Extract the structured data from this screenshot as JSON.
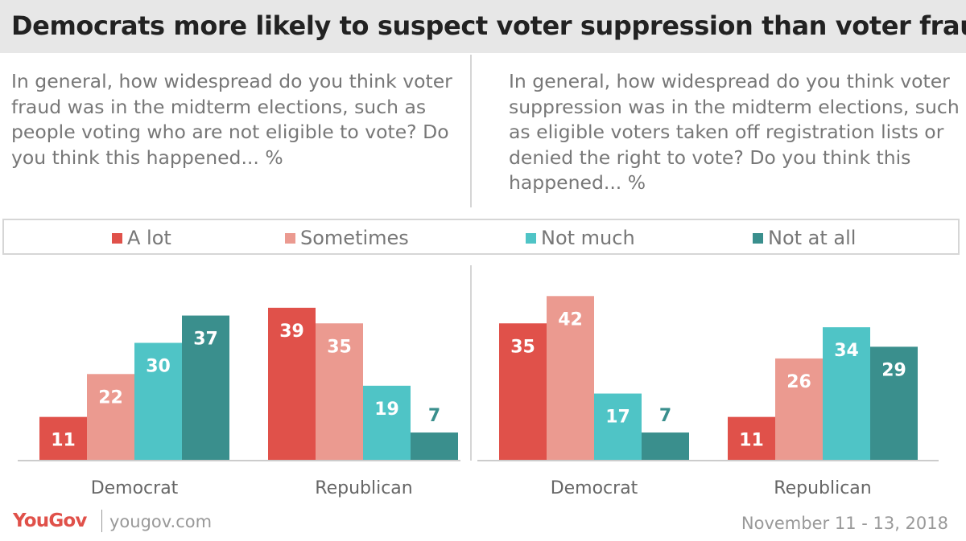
{
  "title": "Democrats more likely to suspect voter suppression than voter fraud",
  "questions": {
    "left": "In general, how widespread do you think voter fraud was in the midterm elections, such as people voting who are not eligible to vote? Do you think this happened... %",
    "right": "In general, how widespread do you think voter suppression was in the midterm elections, such as eligible voters taken off registration lists or denied the right to vote? Do you think this happened... %"
  },
  "legend": [
    {
      "label": "A lot",
      "color": "#e0514a"
    },
    {
      "label": "Sometimes",
      "color": "#eb9a90"
    },
    {
      "label": "Not much",
      "color": "#4fc4c6"
    },
    {
      "label": "Not at all",
      "color": "#3a8f8d"
    }
  ],
  "footer": {
    "brand": "YouGov",
    "site": "yougov.com",
    "date": "November 11 - 13, 2018"
  },
  "chart_data": [
    {
      "type": "bar",
      "categories": [
        "Democrat",
        "Republican"
      ],
      "series": [
        {
          "name": "A lot",
          "values": [
            11,
            39
          ]
        },
        {
          "name": "Sometimes",
          "values": [
            22,
            35
          ]
        },
        {
          "name": "Not much",
          "values": [
            30,
            19
          ]
        },
        {
          "name": "Not at all",
          "values": [
            37,
            7
          ]
        }
      ],
      "title": "",
      "ylim": [
        0,
        45
      ]
    },
    {
      "type": "bar",
      "categories": [
        "Democrat",
        "Republican"
      ],
      "series": [
        {
          "name": "A lot",
          "values": [
            35,
            11
          ]
        },
        {
          "name": "Sometimes",
          "values": [
            42,
            26
          ]
        },
        {
          "name": "Not much",
          "values": [
            17,
            34
          ]
        },
        {
          "name": "Not at all",
          "values": [
            7,
            29
          ]
        }
      ],
      "title": "",
      "ylim": [
        0,
        45
      ]
    }
  ]
}
